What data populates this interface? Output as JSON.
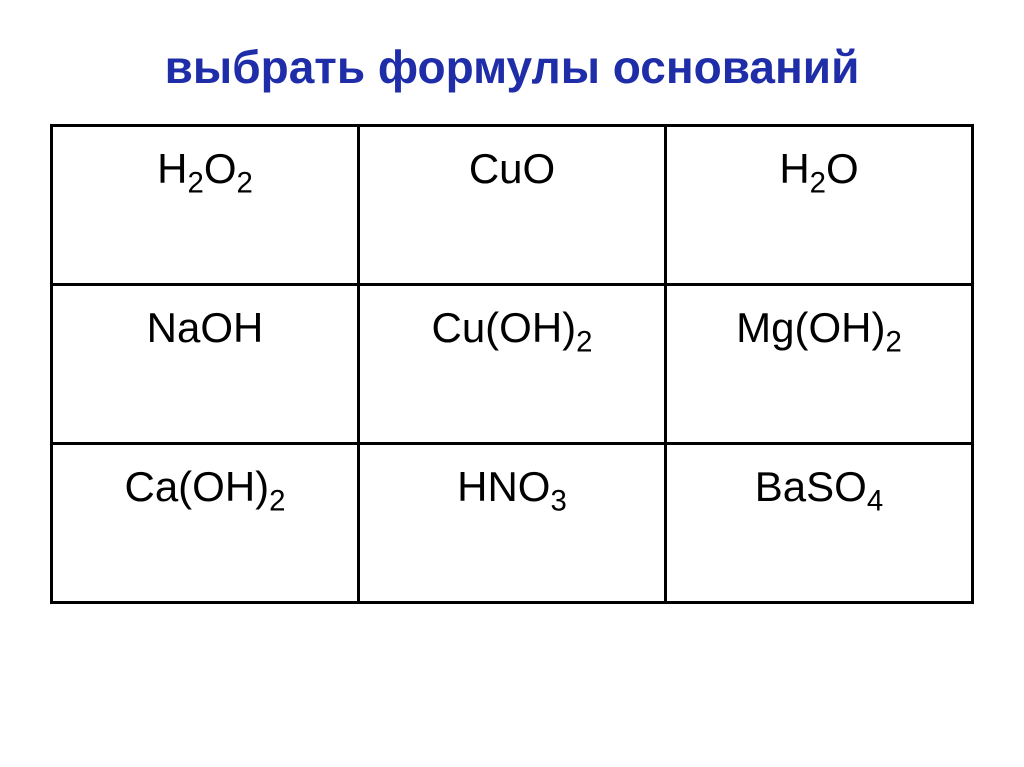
{
  "title": {
    "text": "выбрать формулы оснований",
    "color": "#1f2ea8",
    "fontsize": 46
  },
  "table": {
    "border_color": "#000000",
    "cell_fontsize": 42,
    "cell_color": "#000000",
    "columns": 3,
    "rows": [
      [
        {
          "parts": [
            {
              "t": "H"
            },
            {
              "t": "2",
              "sub": true
            },
            {
              "t": "O"
            },
            {
              "t": "2",
              "sub": true
            }
          ]
        },
        {
          "parts": [
            {
              "t": "CuO"
            }
          ]
        },
        {
          "parts": [
            {
              "t": "H"
            },
            {
              "t": "2",
              "sub": true
            },
            {
              "t": "O"
            }
          ]
        }
      ],
      [
        {
          "parts": [
            {
              "t": "NaOH"
            }
          ]
        },
        {
          "parts": [
            {
              "t": "Cu(OH)"
            },
            {
              "t": "2",
              "sub": true
            }
          ]
        },
        {
          "parts": [
            {
              "t": "Mg(OH)"
            },
            {
              "t": "2",
              "sub": true
            }
          ]
        }
      ],
      [
        {
          "parts": [
            {
              "t": "Ca(OH)"
            },
            {
              "t": "2",
              "sub": true
            }
          ]
        },
        {
          "parts": [
            {
              "t": "HNO"
            },
            {
              "t": "3",
              "sub": true
            }
          ]
        },
        {
          "parts": [
            {
              "t": "BaSO"
            },
            {
              "t": "4",
              "sub": true
            }
          ]
        }
      ]
    ]
  }
}
